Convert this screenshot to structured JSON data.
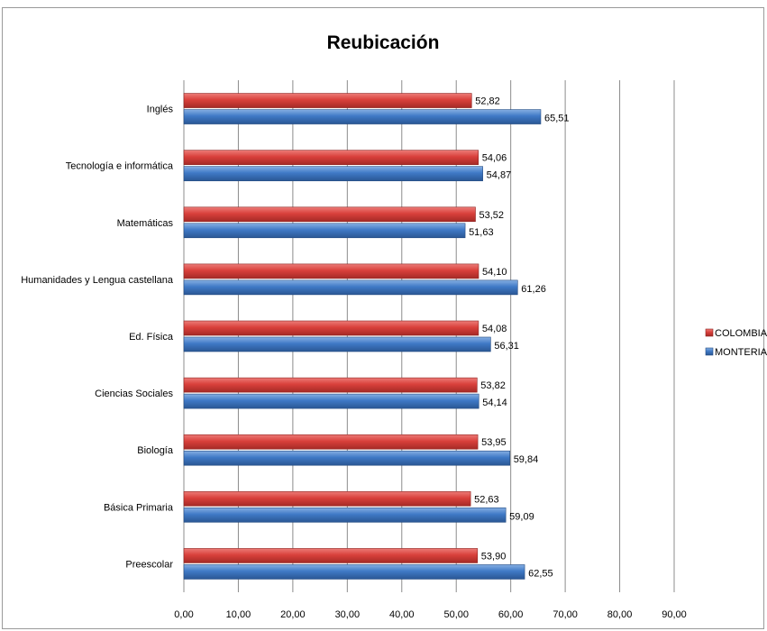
{
  "chart_data": {
    "type": "bar",
    "orientation": "horizontal",
    "title": "Reubicación",
    "categories": [
      "Inglés",
      "Tecnología e informática",
      "Matemáticas",
      "Humanidades y Lengua castellana",
      "Ed. Física",
      "Ciencias Sociales",
      "Biología",
      "Básica Primaria",
      "Preescolar"
    ],
    "series": [
      {
        "name": "COLOMBIA",
        "color": "#d9403b",
        "values": [
          52.82,
          54.06,
          53.52,
          54.1,
          54.08,
          53.82,
          53.95,
          52.63,
          53.9
        ],
        "labels": [
          "52,82",
          "54,06",
          "53,52",
          "54,10",
          "54,08",
          "53,82",
          "53,95",
          "52,63",
          "53,90"
        ]
      },
      {
        "name": "MONTERIA",
        "color": "#3f79c6",
        "values": [
          65.51,
          54.87,
          51.63,
          61.26,
          56.31,
          54.14,
          59.84,
          59.09,
          62.55
        ],
        "labels": [
          "65,51",
          "54,87",
          "51,63",
          "61,26",
          "56,31",
          "54,14",
          "59,84",
          "59,09",
          "62,55"
        ]
      }
    ],
    "xlim": [
      0,
      90
    ],
    "x_ticks": [
      0,
      10,
      20,
      30,
      40,
      50,
      60,
      70,
      80,
      90
    ],
    "x_tick_labels": [
      "0,00",
      "10,00",
      "20,00",
      "30,00",
      "40,00",
      "50,00",
      "60,00",
      "70,00",
      "80,00",
      "90,00"
    ],
    "grid": "vertical",
    "legend": "right"
  }
}
